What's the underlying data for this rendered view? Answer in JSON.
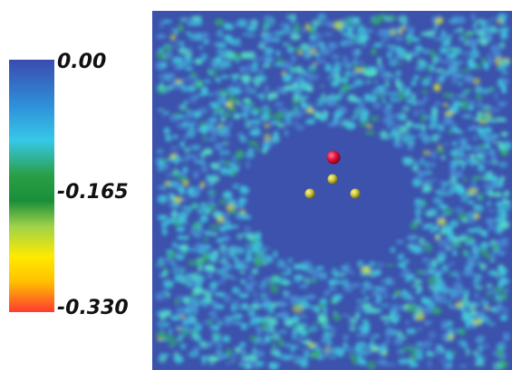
{
  "colorbar": {
    "max_label": "0.00",
    "mid_label": "-0.165",
    "min_label": "-0.330",
    "stops": [
      "#3a4bb0",
      "#2f8fd8",
      "#36c8e8",
      "#2a9e45",
      "#1a8f3a",
      "#9fd24a",
      "#ffea00",
      "#ffc000",
      "#ff3b30"
    ]
  },
  "density_map": {
    "background_color": "#3c52ac",
    "speckle_colors": [
      "#4a8fd6",
      "#3fc7dd",
      "#54e0c8",
      "#2fb06a",
      "#c8e03a"
    ],
    "atoms": [
      {
        "element_color": "#e0103a",
        "kind": "red-atom"
      },
      {
        "element_color": "#c9c23a",
        "kind": "yellow-atom"
      },
      {
        "element_color": "#c9c23a",
        "kind": "yellow-atom"
      },
      {
        "element_color": "#c9c23a",
        "kind": "yellow-atom"
      }
    ]
  }
}
